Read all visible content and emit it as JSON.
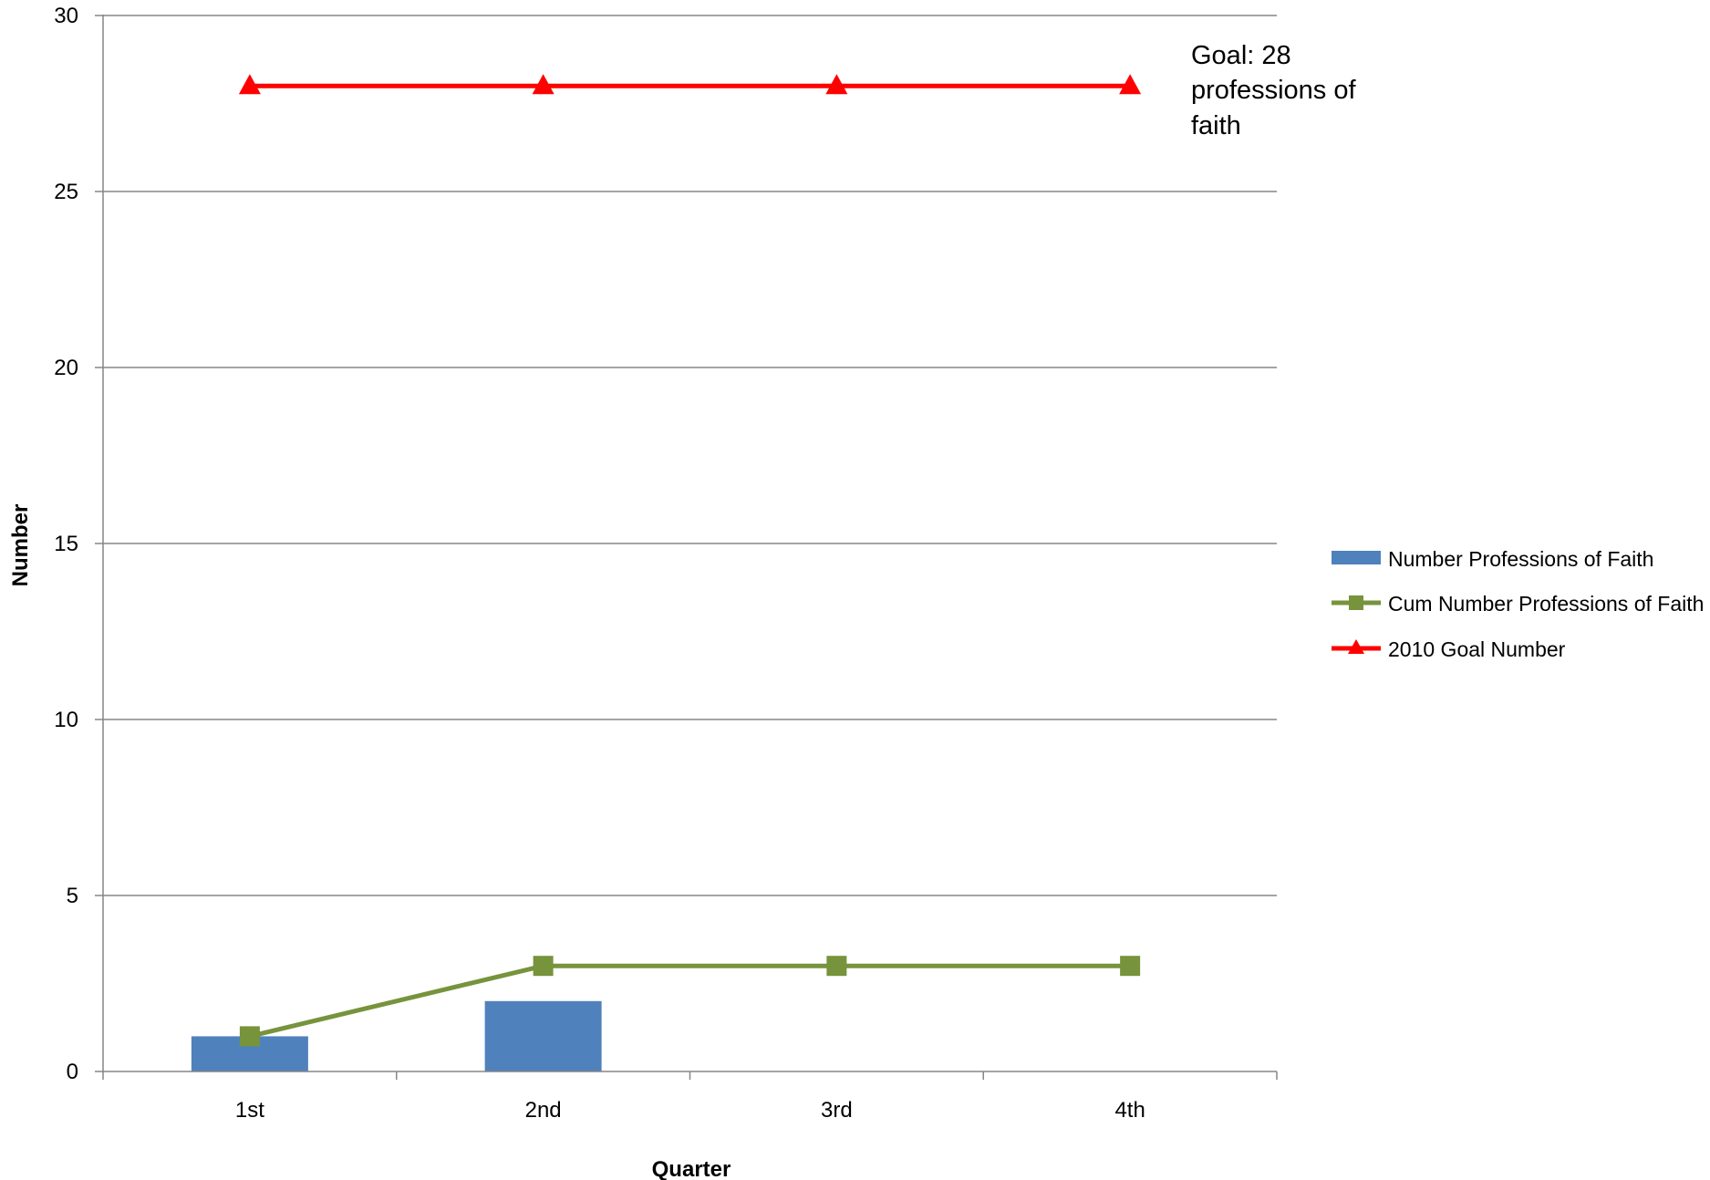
{
  "chart_data": {
    "type": "bar",
    "categories": [
      "1st",
      "2nd",
      "3rd",
      "4th"
    ],
    "series": [
      {
        "name": "Number Professions of Faith",
        "type": "bar",
        "color": "#4F81BD",
        "values": [
          1,
          2,
          null,
          null
        ]
      },
      {
        "name": "Cum Number Professions of Faith",
        "type": "line",
        "marker": "square",
        "color": "#77933C",
        "values": [
          1,
          3,
          3,
          3
        ]
      },
      {
        "name": "2010 Goal Number",
        "type": "line",
        "marker": "triangle",
        "color": "#FF0000",
        "values": [
          28,
          28,
          28,
          28
        ]
      }
    ],
    "title": "",
    "xlabel": "Quarter",
    "ylabel": "Number",
    "ylim": [
      0,
      30
    ],
    "yticks": [
      "0",
      "5",
      "10",
      "15",
      "20",
      "25",
      "30"
    ],
    "grid": true,
    "legend_position": "right",
    "annotation": [
      "Goal: 28",
      "professions of",
      "faith"
    ]
  }
}
